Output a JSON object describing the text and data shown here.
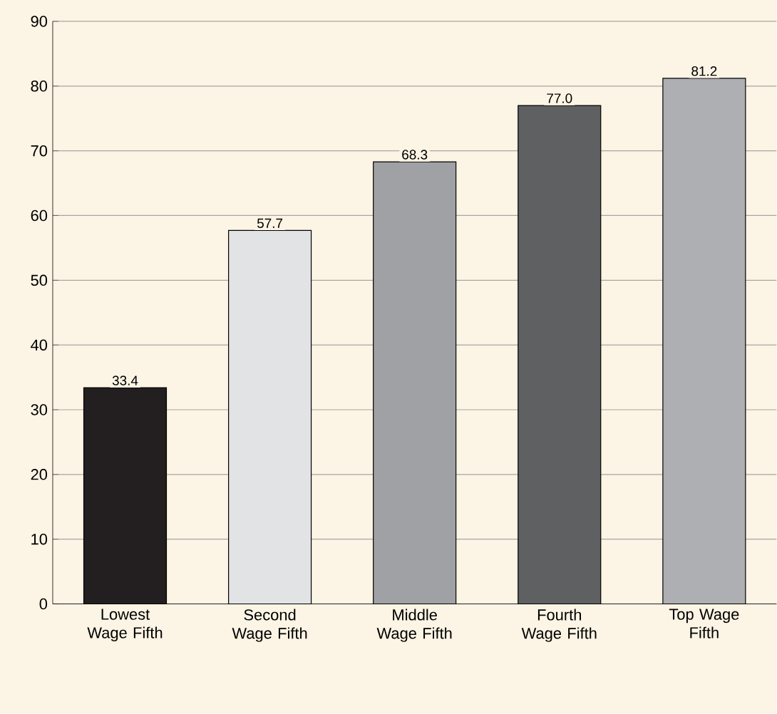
{
  "chart_data": {
    "type": "bar",
    "categories": [
      "Lowest Wage Fifth",
      "Second Wage Fifth",
      "Middle Wage Fifth",
      "Fourth Wage Fifth",
      "Top Wage Fifth"
    ],
    "values": [
      33.4,
      57.7,
      68.3,
      77.0,
      81.2
    ],
    "colors": [
      "#231f20",
      "#e2e3e5",
      "#a0a1a4",
      "#5f6062",
      "#aeafb2"
    ],
    "value_labels": [
      "33.4",
      "57.7",
      "68.3",
      "77.0",
      "81.2"
    ],
    "ylim": [
      0,
      90
    ],
    "yticks": [
      0,
      10,
      20,
      30,
      40,
      50,
      60,
      70,
      80,
      90
    ],
    "grid": "y"
  }
}
